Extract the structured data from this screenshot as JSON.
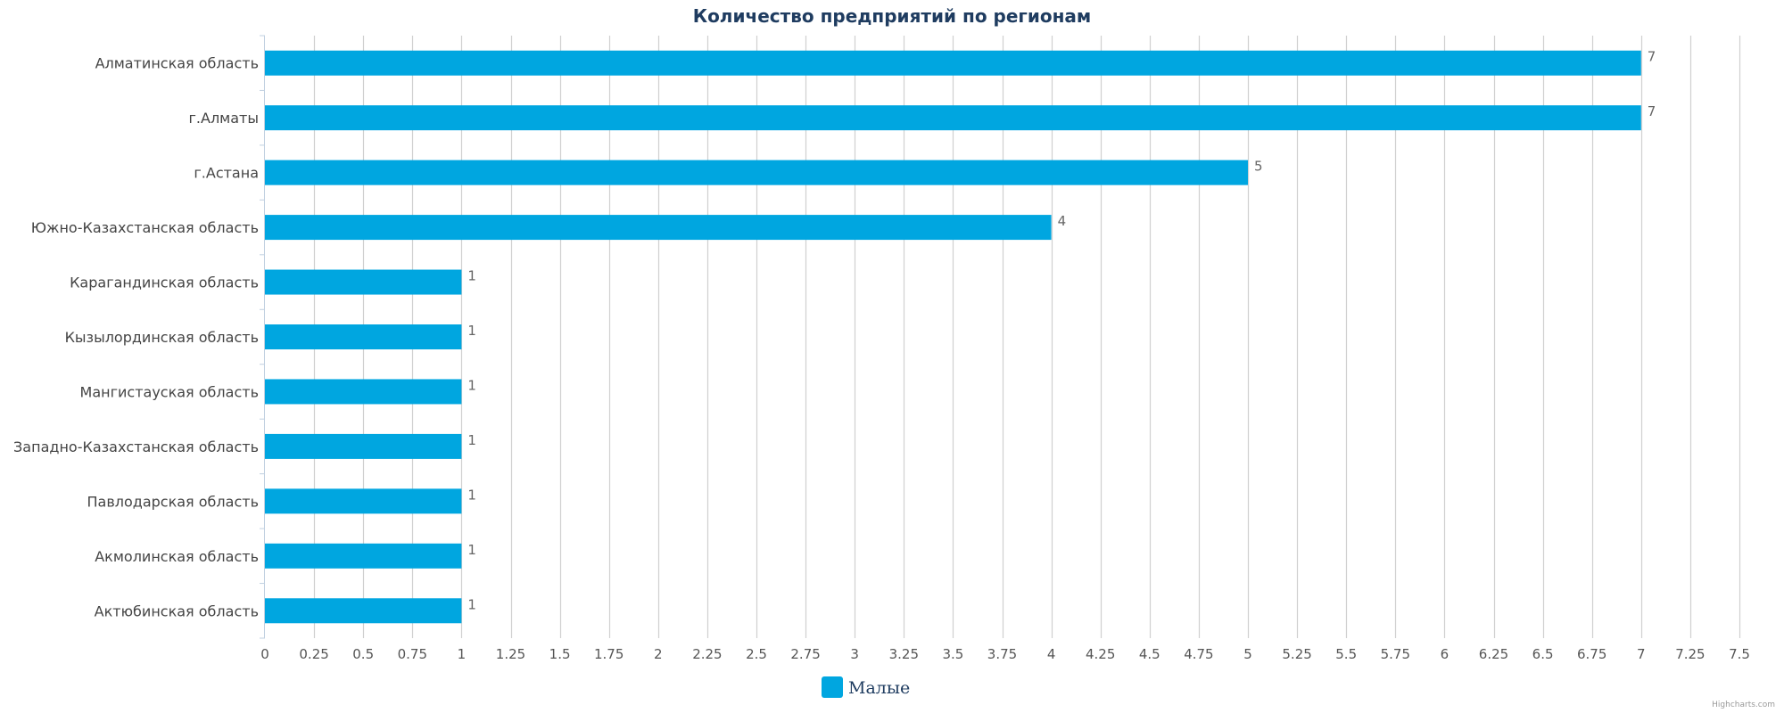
{
  "chart_data": {
    "type": "bar",
    "orientation": "horizontal",
    "title": "Количество предприятий по регионам",
    "categories": [
      "Алматинская область",
      "г.Алматы",
      "г.Астана",
      "Южно-Казахстанская область",
      "Карагандинская область",
      "Кызылординская область",
      "Мангистауская область",
      "Западно-Казахстанская область",
      "Павлодарская область",
      "Акмолинская область",
      "Актюбинская область"
    ],
    "series": [
      {
        "name": "Малые",
        "color": "#00a6e0",
        "values": [
          7,
          7,
          5,
          4,
          1,
          1,
          1,
          1,
          1,
          1,
          1
        ]
      }
    ],
    "xlim": [
      0,
      7.5
    ],
    "tick_step": 0.25,
    "tick_labels": [
      "0",
      "0.25",
      "0.5",
      "0.75",
      "1",
      "1.25",
      "1.5",
      "1.75",
      "2",
      "2.25",
      "2.5",
      "2.75",
      "3",
      "3.25",
      "3.5",
      "3.75",
      "4",
      "4.25",
      "4.5",
      "4.75",
      "5",
      "5.25",
      "5.5",
      "5.75",
      "6",
      "6.25",
      "6.5",
      "6.75",
      "7",
      "7.25",
      "7.5"
    ],
    "grid": true,
    "data_labels": true,
    "legend_position": "bottom-center",
    "credit": "Highcharts.com"
  }
}
